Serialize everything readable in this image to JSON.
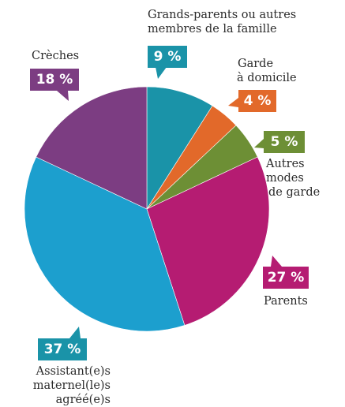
{
  "chart_data": {
    "type": "pie",
    "start_angle_deg": 0,
    "direction": "clockwise",
    "slices": [
      {
        "label": "Grands-parents ou autres membres de la famille",
        "label_lines": [
          "Grands-parents ou autres",
          "membres de la famille"
        ],
        "value": 9,
        "display": "9 %",
        "color": "#1a93a8",
        "badge_color": "#1a93a8"
      },
      {
        "label": "Garde à domicile",
        "label_lines": [
          "Garde",
          "à domicile"
        ],
        "value": 4,
        "display": "4 %",
        "color": "#e2692a",
        "badge_color": "#e2692a"
      },
      {
        "label": "Autres modes de garde",
        "label_lines": [
          "Autres modes",
          "de garde"
        ],
        "value": 5,
        "display": "5 %",
        "color": "#6d8f35",
        "badge_color": "#6d8f35"
      },
      {
        "label": "Parents",
        "label_lines": [
          "Parents"
        ],
        "value": 27,
        "display": "27 %",
        "color": "#b51c72",
        "badge_color": "#b51c72"
      },
      {
        "label": "Assistant(e)s maternel(le)s agréé(e)s",
        "label_lines": [
          "Assistant(e)s",
          "maternel(le)s",
          "agréé(e)s"
        ],
        "value": 37,
        "display": "37 %",
        "color": "#1c9fce",
        "badge_color": "#1a93a8"
      },
      {
        "label": "Crèches",
        "label_lines": [
          "Crèches"
        ],
        "value": 18,
        "display": "18 %",
        "color": "#7c3d82",
        "badge_color": "#7c3d82"
      }
    ]
  }
}
